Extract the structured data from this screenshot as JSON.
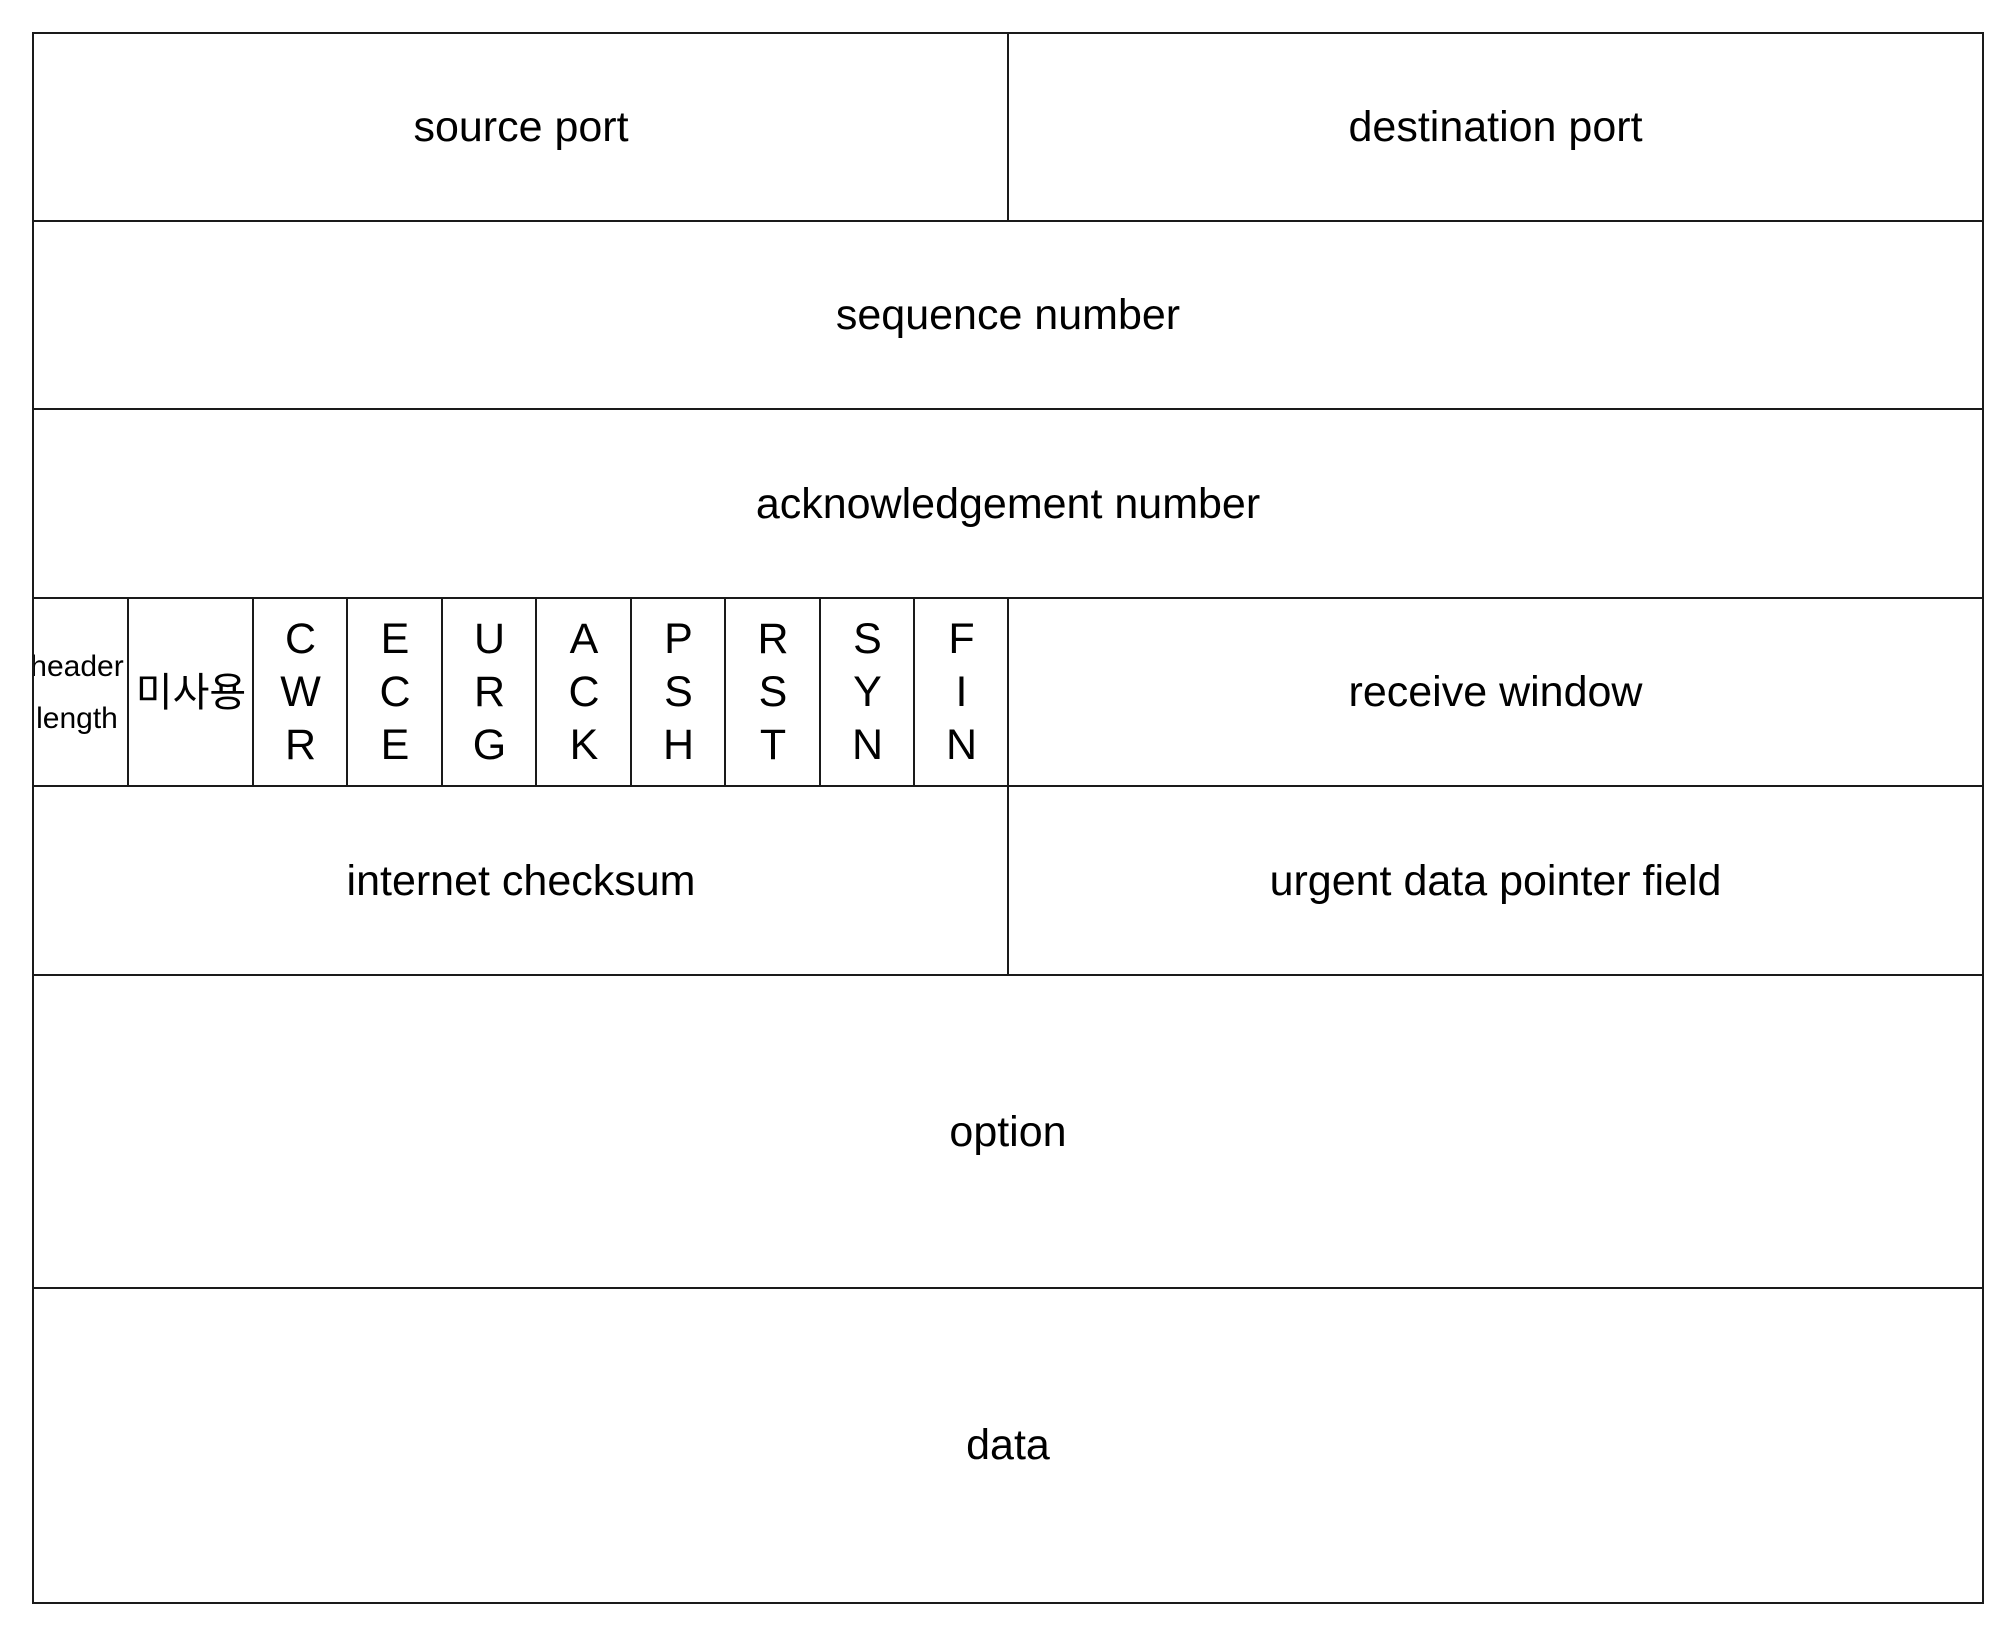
{
  "rows": {
    "row1": {
      "source_port": "source port",
      "destination_port": "destination port"
    },
    "row2": {
      "sequence_number": "sequence number"
    },
    "row3": {
      "acknowledgement_number": "acknowledgement number"
    },
    "row4": {
      "header_length": "header\nlength",
      "unused": "미사용",
      "flags": [
        {
          "name": "CWR",
          "text": "C\nW\nR"
        },
        {
          "name": "ECE",
          "text": "E\nC\nE"
        },
        {
          "name": "URG",
          "text": "U\nR\nG"
        },
        {
          "name": "ACK",
          "text": "A\nC\nK"
        },
        {
          "name": "PSH",
          "text": "P\nS\nH"
        },
        {
          "name": "RST",
          "text": "R\nS\nT"
        },
        {
          "name": "SYN",
          "text": "S\nY\nN"
        },
        {
          "name": "FIN",
          "text": "F\nI\nN"
        }
      ],
      "receive_window": "receive window"
    },
    "row5": {
      "internet_checksum": "internet checksum",
      "urgent_data_pointer": "urgent data pointer field"
    },
    "row6": {
      "option": "option"
    },
    "row7": {
      "data": "data"
    }
  }
}
